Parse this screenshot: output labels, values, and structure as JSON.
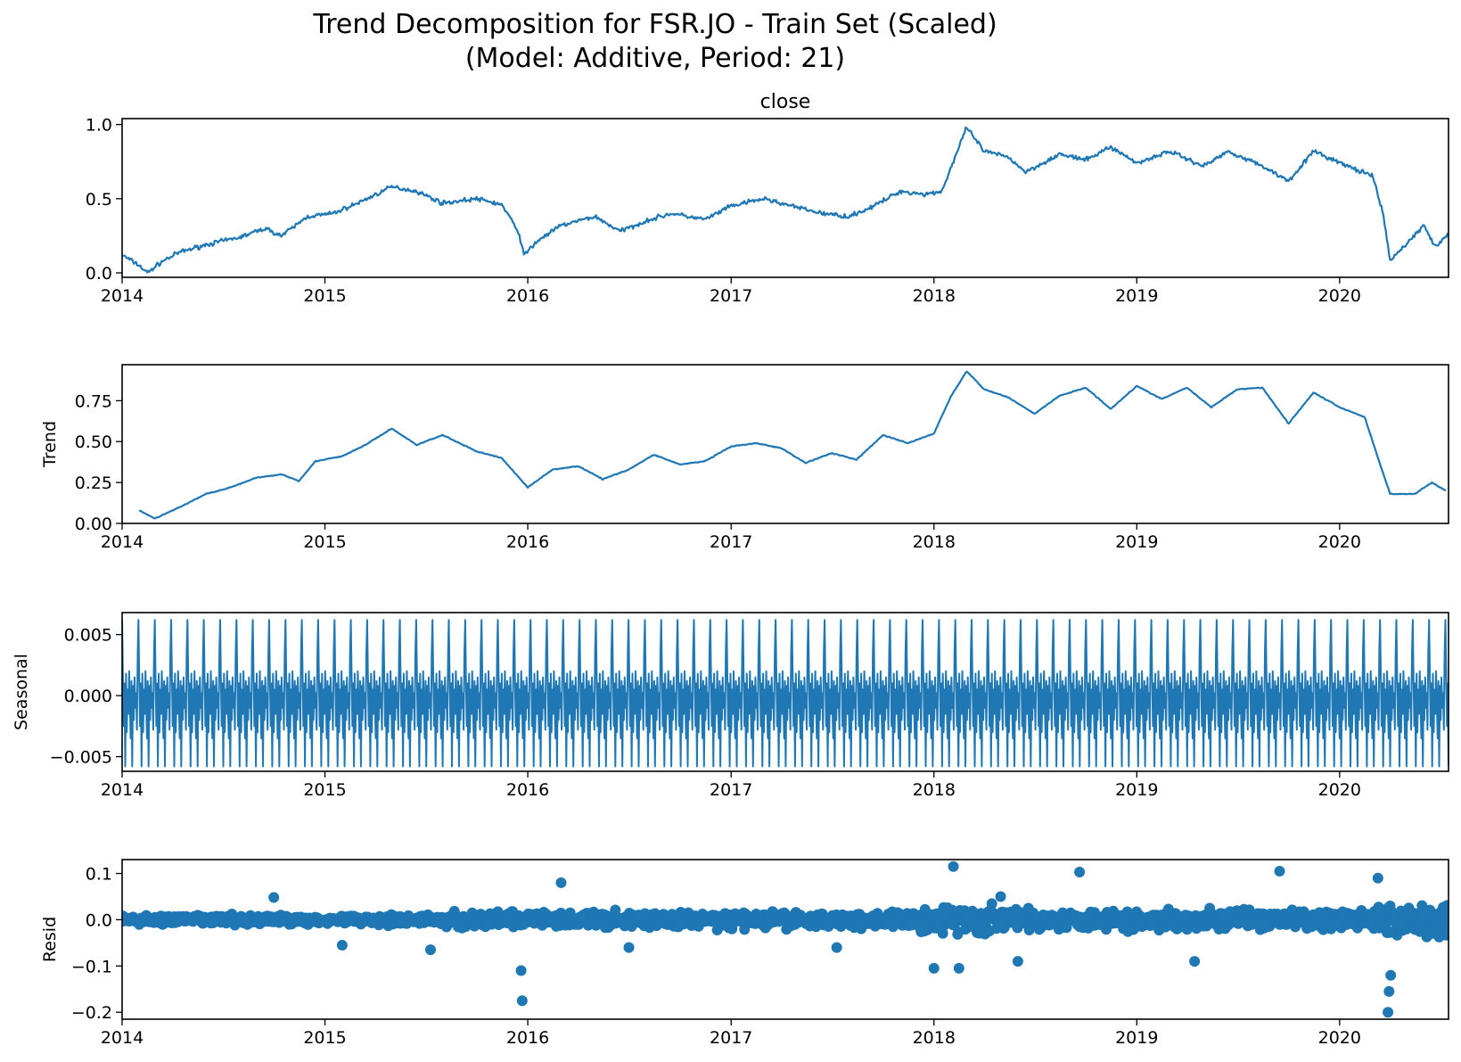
{
  "figure": {
    "suptitle_line1": "Trend Decomposition for FSR.JO - Train Set (Scaled)",
    "suptitle_line2": "(Model: Additive, Period: 21)"
  },
  "chart_data": [
    {
      "type": "line",
      "title": "close",
      "xlabel": "",
      "ylabel": "",
      "color": "#1f77b4",
      "x_ticks": [
        "2014",
        "2015",
        "2016",
        "2017",
        "2018",
        "2019",
        "2020"
      ],
      "xlim": [
        "2014-01-01",
        "2020-07-15"
      ],
      "y_ticks": [
        0.0,
        0.5,
        1.0
      ],
      "y_tick_labels": [
        "0.0",
        "0.5",
        "1.0"
      ],
      "ylim": [
        -0.03,
        1.04
      ],
      "points": [
        [
          "2014-01-01",
          0.12
        ],
        [
          "2014-02-01",
          0.05
        ],
        [
          "2014-02-15",
          0.0
        ],
        [
          "2014-03-15",
          0.08
        ],
        [
          "2014-04-15",
          0.14
        ],
        [
          "2014-06-01",
          0.19
        ],
        [
          "2014-08-01",
          0.24
        ],
        [
          "2014-09-15",
          0.3
        ],
        [
          "2014-10-15",
          0.25
        ],
        [
          "2014-12-01",
          0.38
        ],
        [
          "2015-01-15",
          0.4
        ],
        [
          "2015-03-01",
          0.47
        ],
        [
          "2015-05-01",
          0.58
        ],
        [
          "2015-06-15",
          0.55
        ],
        [
          "2015-08-01",
          0.47
        ],
        [
          "2015-10-01",
          0.5
        ],
        [
          "2015-11-15",
          0.46
        ],
        [
          "2015-12-15",
          0.28
        ],
        [
          "2015-12-25",
          0.12
        ],
        [
          "2016-01-20",
          0.22
        ],
        [
          "2016-03-01",
          0.32
        ],
        [
          "2016-05-01",
          0.38
        ],
        [
          "2016-06-15",
          0.28
        ],
        [
          "2016-08-01",
          0.35
        ],
        [
          "2016-09-15",
          0.4
        ],
        [
          "2016-11-15",
          0.36
        ],
        [
          "2017-01-01",
          0.45
        ],
        [
          "2017-03-01",
          0.5
        ],
        [
          "2017-05-01",
          0.44
        ],
        [
          "2017-06-15",
          0.4
        ],
        [
          "2017-08-01",
          0.38
        ],
        [
          "2017-09-15",
          0.45
        ],
        [
          "2017-11-01",
          0.55
        ],
        [
          "2017-12-15",
          0.53
        ],
        [
          "2018-01-15",
          0.55
        ],
        [
          "2018-03-01",
          0.98
        ],
        [
          "2018-04-01",
          0.82
        ],
        [
          "2018-05-15",
          0.78
        ],
        [
          "2018-06-15",
          0.68
        ],
        [
          "2018-08-15",
          0.8
        ],
        [
          "2018-10-01",
          0.76
        ],
        [
          "2018-11-15",
          0.85
        ],
        [
          "2019-01-01",
          0.74
        ],
        [
          "2019-03-01",
          0.82
        ],
        [
          "2019-05-01",
          0.72
        ],
        [
          "2019-06-15",
          0.82
        ],
        [
          "2019-08-15",
          0.72
        ],
        [
          "2019-10-01",
          0.62
        ],
        [
          "2019-11-15",
          0.82
        ],
        [
          "2020-01-15",
          0.72
        ],
        [
          "2020-03-01",
          0.65
        ],
        [
          "2020-03-20",
          0.38
        ],
        [
          "2020-04-01",
          0.08
        ],
        [
          "2020-05-01",
          0.2
        ],
        [
          "2020-06-01",
          0.32
        ],
        [
          "2020-06-20",
          0.18
        ],
        [
          "2020-07-15",
          0.25
        ]
      ]
    },
    {
      "type": "line",
      "title": "",
      "xlabel": "",
      "ylabel": "Trend",
      "color": "#1f77b4",
      "x_ticks": [
        "2014",
        "2015",
        "2016",
        "2017",
        "2018",
        "2019",
        "2020"
      ],
      "xlim": [
        "2014-01-01",
        "2020-07-15"
      ],
      "y_ticks": [
        0.0,
        0.25,
        0.5,
        0.75
      ],
      "y_tick_labels": [
        "0.00",
        "0.25",
        "0.50",
        "0.75"
      ],
      "ylim": [
        0.0,
        0.97
      ],
      "points": [
        [
          "2014-02-01",
          0.08
        ],
        [
          "2014-03-01",
          0.03
        ],
        [
          "2014-04-15",
          0.1
        ],
        [
          "2014-06-01",
          0.18
        ],
        [
          "2014-07-15",
          0.22
        ],
        [
          "2014-09-01",
          0.28
        ],
        [
          "2014-10-15",
          0.3
        ],
        [
          "2014-11-15",
          0.26
        ],
        [
          "2014-12-15",
          0.38
        ],
        [
          "2015-02-01",
          0.41
        ],
        [
          "2015-03-15",
          0.48
        ],
        [
          "2015-05-01",
          0.58
        ],
        [
          "2015-06-15",
          0.48
        ],
        [
          "2015-08-01",
          0.54
        ],
        [
          "2015-10-01",
          0.44
        ],
        [
          "2015-11-15",
          0.4
        ],
        [
          "2016-01-01",
          0.22
        ],
        [
          "2016-02-15",
          0.33
        ],
        [
          "2016-04-01",
          0.35
        ],
        [
          "2016-05-15",
          0.27
        ],
        [
          "2016-07-01",
          0.33
        ],
        [
          "2016-08-15",
          0.42
        ],
        [
          "2016-10-01",
          0.36
        ],
        [
          "2016-11-15",
          0.38
        ],
        [
          "2017-01-01",
          0.47
        ],
        [
          "2017-02-15",
          0.49
        ],
        [
          "2017-04-01",
          0.46
        ],
        [
          "2017-05-15",
          0.37
        ],
        [
          "2017-07-01",
          0.43
        ],
        [
          "2017-08-15",
          0.39
        ],
        [
          "2017-10-01",
          0.54
        ],
        [
          "2017-11-15",
          0.49
        ],
        [
          "2018-01-01",
          0.55
        ],
        [
          "2018-02-01",
          0.78
        ],
        [
          "2018-03-01",
          0.93
        ],
        [
          "2018-04-01",
          0.82
        ],
        [
          "2018-05-15",
          0.77
        ],
        [
          "2018-07-01",
          0.67
        ],
        [
          "2018-08-15",
          0.78
        ],
        [
          "2018-10-01",
          0.83
        ],
        [
          "2018-11-15",
          0.7
        ],
        [
          "2019-01-01",
          0.84
        ],
        [
          "2019-02-15",
          0.76
        ],
        [
          "2019-04-01",
          0.83
        ],
        [
          "2019-05-15",
          0.71
        ],
        [
          "2019-07-01",
          0.82
        ],
        [
          "2019-08-15",
          0.83
        ],
        [
          "2019-10-01",
          0.61
        ],
        [
          "2019-11-15",
          0.8
        ],
        [
          "2020-01-01",
          0.71
        ],
        [
          "2020-02-15",
          0.65
        ],
        [
          "2020-03-15",
          0.35
        ],
        [
          "2020-04-01",
          0.18
        ],
        [
          "2020-05-15",
          0.18
        ],
        [
          "2020-06-15",
          0.25
        ],
        [
          "2020-07-10",
          0.2
        ]
      ]
    },
    {
      "type": "line",
      "title": "",
      "xlabel": "",
      "ylabel": "Seasonal",
      "color": "#1f77b4",
      "period": 21,
      "x_ticks": [
        "2014",
        "2015",
        "2016",
        "2017",
        "2018",
        "2019",
        "2020"
      ],
      "xlim": [
        "2014-01-01",
        "2020-07-15"
      ],
      "y_ticks": [
        -0.005,
        0.0,
        0.005
      ],
      "y_tick_labels": [
        "−0.005",
        "0.000",
        "0.005"
      ],
      "ylim": [
        -0.0062,
        0.0068
      ],
      "cycle_values": [
        0.0062,
        0.0015,
        -0.0025,
        0.001,
        -0.0058,
        0.0018,
        -0.003,
        0.0005,
        -0.0015,
        0.002,
        -0.0008,
        -0.0035,
        0.0012,
        -0.0058,
        0.0008,
        -0.002,
        0.0015,
        -0.001,
        0.0002,
        -0.0028,
        0.0035
      ]
    },
    {
      "type": "scatter",
      "title": "",
      "xlabel": "",
      "ylabel": "Resid",
      "color": "#1f77b4",
      "x_ticks": [
        "2014",
        "2015",
        "2016",
        "2017",
        "2018",
        "2019",
        "2020"
      ],
      "xlim": [
        "2014-01-01",
        "2020-07-15"
      ],
      "y_ticks": [
        -0.2,
        -0.1,
        0.0,
        0.1
      ],
      "y_tick_labels": [
        "−0.2",
        "−0.1",
        "0.0",
        "0.1"
      ],
      "ylim": [
        -0.215,
        0.13
      ],
      "baseline": 0.0,
      "points": [
        [
          "2015-12-20",
          -0.11
        ],
        [
          "2015-12-22",
          -0.175
        ],
        [
          "2018-01-01",
          -0.105
        ],
        [
          "2018-02-05",
          0.115
        ],
        [
          "2018-02-15",
          -0.105
        ],
        [
          "2018-09-20",
          0.103
        ],
        [
          "2019-09-15",
          0.105
        ],
        [
          "2019-04-15",
          -0.09
        ],
        [
          "2020-03-28",
          -0.2
        ],
        [
          "2020-03-30",
          -0.155
        ],
        [
          "2020-04-02",
          -0.12
        ],
        [
          "2020-03-10",
          0.09
        ],
        [
          "2015-02-01",
          -0.055
        ],
        [
          "2015-07-10",
          -0.065
        ],
        [
          "2016-07-01",
          -0.06
        ],
        [
          "2017-07-10",
          -0.06
        ],
        [
          "2018-05-01",
          0.05
        ],
        [
          "2018-06-01",
          -0.09
        ],
        [
          "2016-03-01",
          0.08
        ],
        [
          "2014-10-01",
          0.048
        ]
      ]
    }
  ]
}
